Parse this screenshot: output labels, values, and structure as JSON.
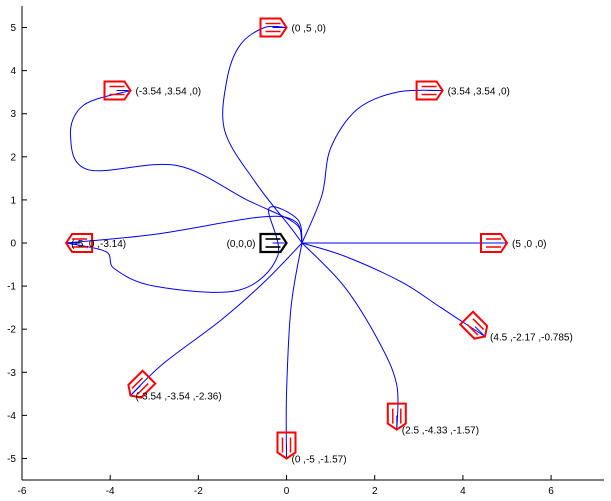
{
  "chart_data": {
    "type": "scatter",
    "title": "",
    "xlabel": "",
    "ylabel": "",
    "xlim": [
      -6,
      7.2
    ],
    "ylim": [
      -5.5,
      5.5
    ],
    "xticks": [
      -6,
      -4,
      -2,
      0,
      2,
      4,
      6
    ],
    "yticks": [
      -5,
      -4,
      -3,
      -2,
      -1,
      0,
      1,
      2,
      3,
      4,
      5
    ],
    "grid": false,
    "origin": {
      "x": 0,
      "y": 0,
      "theta": 0,
      "label": "(0,0,0)",
      "color": "#000000"
    },
    "poses": [
      {
        "x": 0,
        "y": 5,
        "theta": 0,
        "label": "(0 ,5 ,0)"
      },
      {
        "x": 3.54,
        "y": 3.54,
        "theta": 0,
        "label": "(3.54 ,3.54 ,0)"
      },
      {
        "x": -3.54,
        "y": 3.54,
        "theta": 0,
        "label": "(-3.54 ,3.54 ,0)"
      },
      {
        "x": 5,
        "y": 0,
        "theta": 0,
        "label": "(5 ,0 ,0)"
      },
      {
        "x": -5,
        "y": 0,
        "theta": -3.14,
        "label": "(-5 ,0 ,-3.14)"
      },
      {
        "x": 4.5,
        "y": -2.17,
        "theta": -0.785,
        "label": "(4.5 ,-2.17 ,-0.785)"
      },
      {
        "x": -3.54,
        "y": -3.54,
        "theta": -2.36,
        "label": "(-3.54 ,-3.54 ,-2.36)"
      },
      {
        "x": 2.5,
        "y": -4.33,
        "theta": -1.57,
        "label": "(2.5 ,-4.33 ,-1.57)"
      },
      {
        "x": 0,
        "y": -5,
        "theta": -1.57,
        "label": "(0 ,-5 ,-1.57)"
      }
    ],
    "paths": [
      [
        [
          0.35,
          0
        ],
        [
          0.1,
          0.35
        ],
        [
          -0.7,
          1.4
        ],
        [
          -1.4,
          2.6
        ],
        [
          -1.35,
          3.8
        ],
        [
          -1.05,
          4.6
        ],
        [
          -0.5,
          5
        ],
        [
          0,
          5
        ]
      ],
      [
        [
          0.35,
          0
        ],
        [
          0.8,
          1.1
        ],
        [
          1.0,
          2.2
        ],
        [
          1.6,
          3.1
        ],
        [
          2.5,
          3.5
        ],
        [
          3.54,
          3.54
        ]
      ],
      [
        [
          0.35,
          0
        ],
        [
          0.2,
          0.45
        ],
        [
          -0.9,
          1.0
        ],
        [
          -2.5,
          1.8
        ],
        [
          -4.5,
          1.7
        ],
        [
          -4.9,
          2.5
        ],
        [
          -4.6,
          3.2
        ],
        [
          -3.54,
          3.54
        ]
      ],
      [
        [
          0.35,
          0
        ],
        [
          5,
          0
        ]
      ],
      [
        [
          0.35,
          0
        ],
        [
          0.2,
          0.5
        ],
        [
          -0.6,
          0.6
        ],
        [
          -3,
          0.2
        ],
        [
          -5,
          0
        ]
      ],
      [
        [
          0.35,
          0
        ],
        [
          1.3,
          -0.3
        ],
        [
          2.6,
          -0.9
        ],
        [
          3.5,
          -1.5
        ],
        [
          4.5,
          -2.17
        ]
      ],
      [
        [
          0.35,
          0
        ],
        [
          0.25,
          0.55
        ],
        [
          -0.4,
          0.8
        ],
        [
          -0.2,
          -0.3
        ],
        [
          -1.1,
          -1.1
        ],
        [
          -3,
          -1.0
        ],
        [
          -3.9,
          -0.6
        ],
        [
          -4.1,
          -0.2
        ],
        [
          -5,
          0
        ]
      ],
      [
        [
          0.35,
          0
        ],
        [
          1.3,
          -1.0
        ],
        [
          2.1,
          -2.3
        ],
        [
          2.5,
          -3.3
        ],
        [
          2.5,
          -4.33
        ]
      ],
      [
        [
          0.35,
          0
        ],
        [
          0.1,
          -1.5
        ],
        [
          0,
          -3.5
        ],
        [
          0,
          -5
        ]
      ],
      [
        [
          0.35,
          0
        ],
        [
          -0.5,
          -0.9
        ],
        [
          -1.5,
          -1.8
        ],
        [
          -2.8,
          -2.8
        ],
        [
          -3.54,
          -3.54
        ]
      ]
    ],
    "colors": {
      "path": "#0000ff",
      "pose": "#ff0000",
      "origin": "#000000",
      "axis": "#000000"
    }
  }
}
